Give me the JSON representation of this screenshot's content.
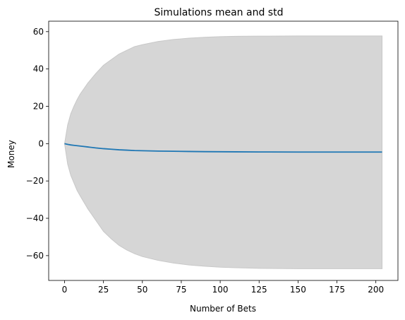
{
  "chart_data": {
    "type": "line",
    "title": "Simulations mean and std",
    "xlabel": "Number of Bets",
    "ylabel": "Money",
    "xlim": [
      -10.2,
      214.2
    ],
    "ylim": [
      -73.3,
      65.6
    ],
    "grid": false,
    "x_ticks": [
      0,
      25,
      50,
      75,
      100,
      125,
      150,
      175,
      200
    ],
    "y_ticks": [
      -60,
      -40,
      -20,
      0,
      20,
      40,
      60
    ],
    "x": [
      0,
      2,
      4,
      6,
      8,
      10,
      15,
      20,
      25,
      30,
      35,
      40,
      45,
      50,
      60,
      70,
      80,
      90,
      100,
      110,
      125,
      150,
      175,
      204
    ],
    "series": [
      {
        "role": "mean",
        "color": "#1f77b4",
        "values": [
          0,
          -0.4,
          -0.7,
          -0.9,
          -1.1,
          -1.3,
          -1.8,
          -2.3,
          -2.7,
          -3.0,
          -3.3,
          -3.5,
          -3.7,
          -3.8,
          -4.0,
          -4.1,
          -4.2,
          -4.3,
          -4.35,
          -4.4,
          -4.45,
          -4.5,
          -4.5,
          -4.5
        ]
      },
      {
        "role": "mean + std",
        "color": "#d6d6d6",
        "values": [
          0,
          10,
          16,
          20,
          23.5,
          26.5,
          32.5,
          37.5,
          42,
          45,
          48,
          50,
          52,
          53,
          54.7,
          55.8,
          56.5,
          57,
          57.3,
          57.5,
          57.6,
          57.7,
          57.7,
          57.7
        ]
      },
      {
        "role": "mean - std",
        "color": "#d6d6d6",
        "values": [
          0,
          -11,
          -17,
          -21,
          -25,
          -28,
          -35,
          -41,
          -47,
          -51,
          -54.5,
          -57,
          -59,
          -60.5,
          -62.5,
          -64,
          -65,
          -65.7,
          -66.2,
          -66.5,
          -66.8,
          -67,
          -67,
          -67
        ]
      }
    ]
  }
}
